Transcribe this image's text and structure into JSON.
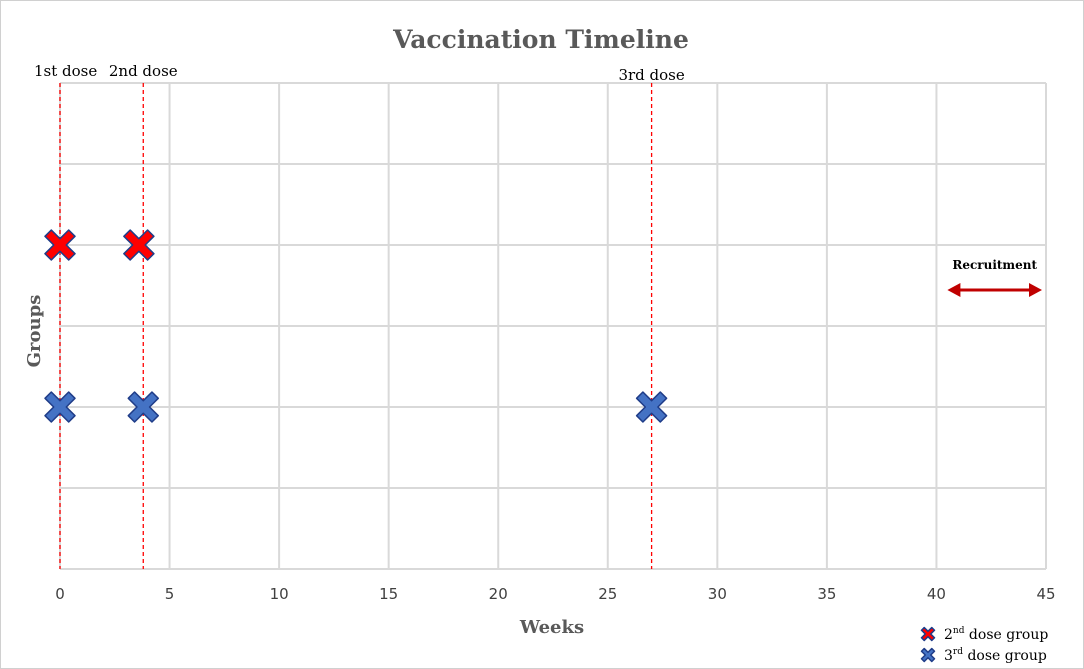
{
  "chart_data": {
    "type": "scatter",
    "title": "Vaccination Timeline",
    "xlabel": "Weeks",
    "ylabel": "Groups",
    "xlim": [
      0,
      45
    ],
    "ylim": [
      0,
      6
    ],
    "xticks": [
      "0",
      "5",
      "10",
      "15",
      "20",
      "25",
      "30",
      "35",
      "40",
      "45"
    ],
    "grid": true,
    "legend_position": "bottom-right",
    "series": [
      {
        "name": "2nd dose group",
        "color": "#ff0000",
        "marker": "x",
        "points": [
          {
            "x": 0,
            "y": 4
          },
          {
            "x": 3.6,
            "y": 4
          }
        ]
      },
      {
        "name": "3rd dose group",
        "color": "#4472c4",
        "marker": "x",
        "points": [
          {
            "x": 0,
            "y": 2
          },
          {
            "x": 3.8,
            "y": 2
          },
          {
            "x": 27,
            "y": 2
          }
        ]
      }
    ],
    "dose_lines": [
      {
        "label": "1st dose",
        "x": 0
      },
      {
        "label": "2nd dose",
        "x": 3.8
      },
      {
        "label": "3rd dose",
        "x": 27
      }
    ],
    "dose_line_color": "#ff0000",
    "recruitment": {
      "label": "Recruitment",
      "x_start": 40.5,
      "x_end": 45,
      "color": "#c00000"
    },
    "legend_items": [
      {
        "base": "2",
        "sup": "nd",
        "rest": " dose group"
      },
      {
        "base": "3",
        "sup": "rd",
        "rest": " dose group"
      }
    ]
  }
}
